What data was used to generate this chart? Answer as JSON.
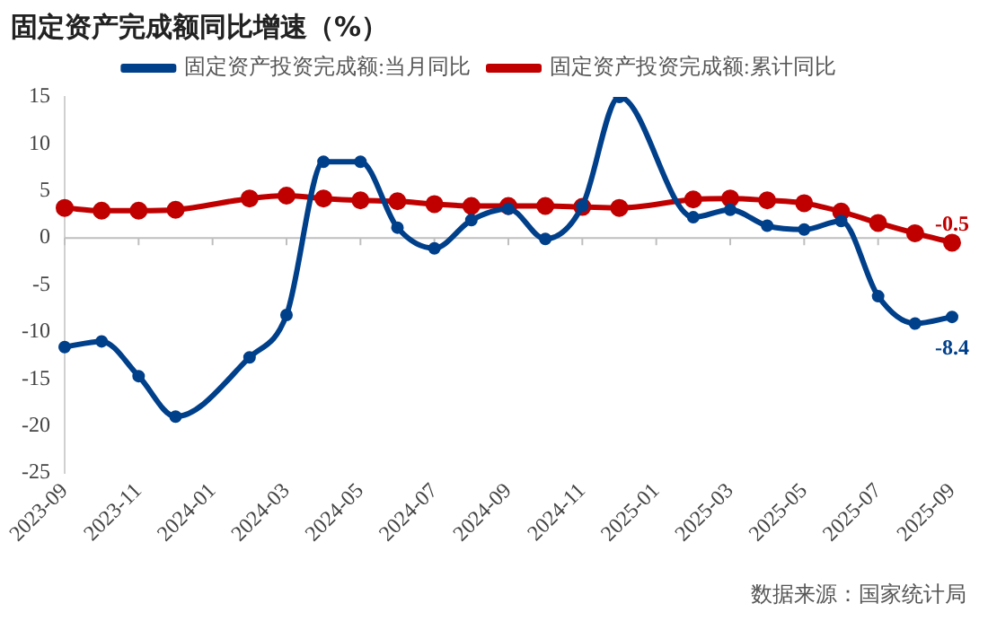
{
  "chart_data": {
    "type": "line",
    "title": "固定资产完成额同比增速（%）",
    "categories": [
      "2023-09",
      null,
      "2023-11",
      null,
      "2024-01",
      null,
      "2024-03",
      null,
      "2024-05",
      null,
      "2024-07",
      null,
      "2024-09",
      null,
      "2024-11",
      null,
      "2025-01",
      null,
      "2025-03",
      null,
      "2025-05",
      null,
      "2025-07",
      null,
      "2025-09"
    ],
    "series": [
      {
        "name": "固定资产投资完成额:当月同比",
        "color": "#003f8a",
        "values": [
          -11.6,
          -11.0,
          -14.7,
          -19.0,
          null,
          -12.7,
          -8.2,
          8.1,
          8.1,
          1.1,
          -1.1,
          1.9,
          3.1,
          -0.1,
          3.4,
          15.0,
          null,
          2.2,
          3.0,
          1.3,
          0.9,
          1.8,
          -6.2,
          -9.1,
          -8.4
        ],
        "value_labels": [
          null,
          null,
          null,
          null,
          null,
          null,
          null,
          null,
          null,
          null,
          null,
          null,
          null,
          null,
          null,
          null,
          null,
          null,
          null,
          null,
          null,
          null,
          null,
          null,
          "-8.4"
        ]
      },
      {
        "name": "固定资产投资完成额:累计同比",
        "color": "#c00000",
        "values": [
          3.2,
          2.9,
          2.9,
          3.0,
          null,
          4.2,
          4.5,
          4.2,
          4.0,
          3.9,
          3.6,
          3.4,
          3.4,
          3.4,
          3.3,
          3.2,
          null,
          4.1,
          4.2,
          4.0,
          3.7,
          2.8,
          1.6,
          0.5,
          -0.5
        ],
        "value_labels": [
          null,
          null,
          null,
          null,
          null,
          null,
          null,
          null,
          null,
          null,
          null,
          null,
          null,
          null,
          null,
          null,
          null,
          null,
          null,
          null,
          null,
          null,
          null,
          null,
          "-0.5"
        ]
      }
    ],
    "ylim": [
      -25,
      15
    ],
    "yticks": [
      -25,
      -20,
      -15,
      -10,
      -5,
      0,
      5,
      10,
      15
    ],
    "grid": false,
    "ref_lines": [
      {
        "axis": "y",
        "value": 0,
        "color": "#bfbfbf"
      }
    ],
    "legend": "top",
    "marker": "circle",
    "line_style": "solid",
    "annotations": [
      "数据来源：国家统计局"
    ]
  }
}
